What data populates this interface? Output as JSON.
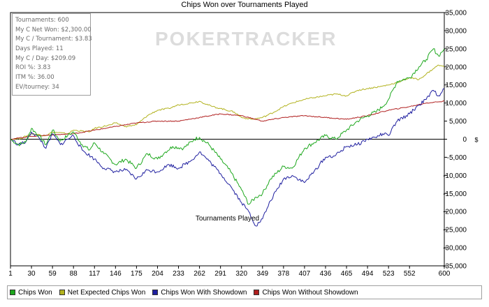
{
  "chart_data": {
    "type": "line",
    "title": "Chips Won over Tournaments Played",
    "xlabel": "Tournaments Played",
    "ylabel": "$",
    "xlim": [
      1,
      600
    ],
    "ylim": [
      -35000,
      35000
    ],
    "x_ticks": [
      1,
      30,
      59,
      88,
      117,
      146,
      175,
      204,
      233,
      262,
      291,
      320,
      349,
      378,
      407,
      436,
      465,
      494,
      523,
      552,
      600
    ],
    "y_ticks": [
      35000,
      30000,
      25000,
      20000,
      15000,
      10000,
      5000,
      0,
      -5000,
      -10000,
      -15000,
      -20000,
      -25000,
      -30000,
      -35000
    ],
    "y_tick_labels": [
      "35,000",
      "30,000",
      "25,000",
      "20,000",
      "15,000",
      "10,000",
      "5,000",
      "0",
      "-5,000",
      "-10,000",
      "-15,000",
      "-20,000",
      "-25,000",
      "-30,000",
      "-35,000"
    ],
    "grid": false,
    "legend_position": "bottom",
    "series": [
      {
        "name": "Chips Won",
        "color": "#1ea81e",
        "x": [
          1,
          12,
          22,
          30,
          40,
          50,
          59,
          70,
          80,
          88,
          100,
          110,
          117,
          130,
          146,
          160,
          175,
          190,
          204,
          215,
          225,
          240,
          255,
          262,
          275,
          291,
          305,
          320,
          330,
          340,
          349,
          360,
          378,
          390,
          407,
          420,
          436,
          450,
          465,
          480,
          494,
          505,
          515,
          523,
          535,
          552,
          565,
          575,
          585,
          592,
          600
        ],
        "y": [
          0,
          -1500,
          -800,
          3000,
          1000,
          -1500,
          2500,
          -500,
          1000,
          2000,
          -1500,
          -3000,
          -1000,
          -4000,
          -7000,
          -5500,
          -8000,
          -4000,
          -5500,
          -3500,
          -2000,
          -2500,
          0,
          500,
          -1500,
          -5500,
          -9000,
          -14000,
          -18000,
          -16000,
          -15000,
          -11000,
          -7500,
          -8000,
          -2500,
          -1000,
          1000,
          0,
          2500,
          5000,
          6500,
          7500,
          9000,
          11000,
          16000,
          17000,
          20000,
          22000,
          25000,
          23000,
          25000
        ]
      },
      {
        "name": "Net Expected Chips Won",
        "color": "#b2b21e",
        "x": [
          1,
          15,
          30,
          50,
          59,
          80,
          88,
          110,
          117,
          140,
          146,
          160,
          175,
          190,
          204,
          220,
          233,
          250,
          262,
          280,
          291,
          310,
          320,
          335,
          349,
          365,
          378,
          390,
          407,
          420,
          436,
          450,
          465,
          480,
          494,
          510,
          523,
          540,
          552,
          565,
          575,
          585,
          592,
          600
        ],
        "y": [
          0,
          200,
          1500,
          1000,
          2000,
          1500,
          2500,
          2000,
          3000,
          4000,
          4500,
          3500,
          4000,
          6500,
          8000,
          8500,
          9500,
          10000,
          10500,
          9000,
          8500,
          7500,
          6000,
          5500,
          6000,
          7500,
          9000,
          10000,
          11000,
          11500,
          12000,
          12500,
          12000,
          13500,
          14000,
          14500,
          15000,
          16000,
          17000,
          16500,
          18000,
          19500,
          20500,
          20000
        ]
      },
      {
        "name": "Chips Won With Showdown",
        "color": "#2020a0",
        "x": [
          1,
          12,
          22,
          30,
          40,
          50,
          59,
          70,
          80,
          88,
          100,
          117,
          130,
          146,
          160,
          175,
          190,
          204,
          220,
          233,
          250,
          262,
          275,
          291,
          305,
          320,
          330,
          340,
          349,
          360,
          378,
          390,
          407,
          420,
          436,
          450,
          465,
          480,
          494,
          505,
          515,
          523,
          535,
          552,
          565,
          575,
          585,
          592,
          600
        ],
        "y": [
          0,
          -1500,
          -800,
          2000,
          500,
          -2500,
          1500,
          -1500,
          0,
          1000,
          -3000,
          -5500,
          -8000,
          -9000,
          -8500,
          -11000,
          -8500,
          -9000,
          -7000,
          -8000,
          -6000,
          -3500,
          -6000,
          -9500,
          -13000,
          -17500,
          -20000,
          -24000,
          -22000,
          -17000,
          -11000,
          -10000,
          -12000,
          -9000,
          -5000,
          -4500,
          -2000,
          -1500,
          0,
          500,
          1500,
          1000,
          5000,
          7000,
          9500,
          11000,
          13500,
          12000,
          14000
        ]
      },
      {
        "name": "Chips Won Without Showdown",
        "color": "#b01e1e",
        "x": [
          1,
          30,
          59,
          88,
          117,
          146,
          175,
          204,
          233,
          262,
          291,
          320,
          349,
          378,
          407,
          436,
          465,
          494,
          523,
          552,
          575,
          600
        ],
        "y": [
          0,
          800,
          1200,
          1500,
          2500,
          3500,
          4500,
          5000,
          5000,
          6000,
          7000,
          6500,
          5000,
          6000,
          6500,
          6000,
          5500,
          6500,
          8000,
          9000,
          10000,
          10500
        ]
      }
    ]
  },
  "stats": [
    "Tournaments: 600",
    "My C Net Won: $2,300.00",
    "My C / Tournament: $3.83",
    "Days Played: 11",
    "My C / Day: $209.09",
    "ROI %: 3.83",
    "ITM %: 36.00",
    "EV/tourney: 34"
  ],
  "watermark_text": "POKERTRACKER"
}
